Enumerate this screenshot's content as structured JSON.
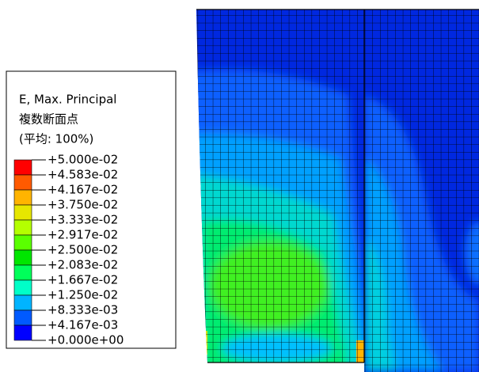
{
  "legend": {
    "title": [
      "E, Max. Principal",
      "複数断面点",
      "(平均: 100%)"
    ],
    "labels": [
      "+5.000e-02",
      "+4.583e-02",
      "+4.167e-02",
      "+3.750e-02",
      "+3.333e-02",
      "+2.917e-02",
      "+2.500e-02",
      "+2.083e-02",
      "+1.667e-02",
      "+1.250e-02",
      "+8.333e-03",
      "+4.167e-03",
      "+0.000e+00"
    ],
    "colors": [
      "#ff0000",
      "#ff5a00",
      "#ffb400",
      "#e6e600",
      "#b4ff00",
      "#5aff00",
      "#00e600",
      "#00ff5a",
      "#00ffc8",
      "#00b4ff",
      "#005aff",
      "#0000ff"
    ]
  }
}
